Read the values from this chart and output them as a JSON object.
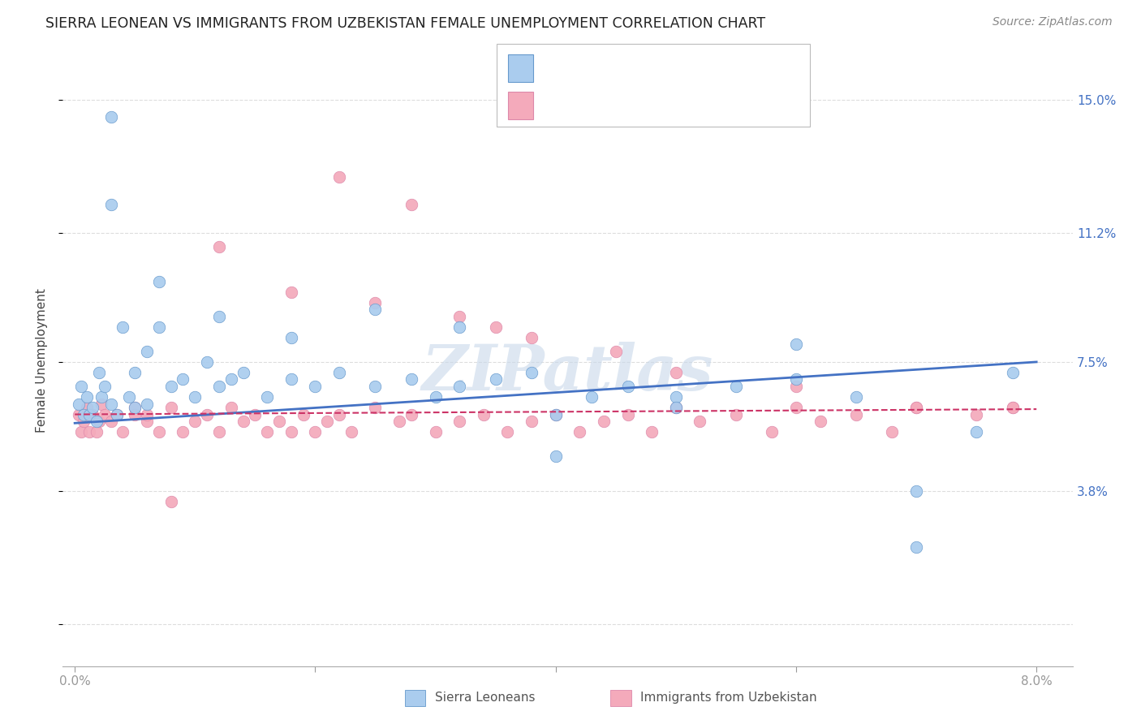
{
  "title": "SIERRA LEONEAN VS IMMIGRANTS FROM UZBEKISTAN FEMALE UNEMPLOYMENT CORRELATION CHART",
  "source": "Source: ZipAtlas.com",
  "ylabel": "Female Unemployment",
  "ytick_vals": [
    0.0,
    0.038,
    0.075,
    0.112,
    0.15
  ],
  "ytick_labels": [
    "",
    "3.8%",
    "7.5%",
    "11.2%",
    "15.0%"
  ],
  "xtick_vals": [
    0.0,
    0.02,
    0.04,
    0.06,
    0.08
  ],
  "xtick_labels": [
    "0.0%",
    "",
    "",
    "",
    "8.0%"
  ],
  "xlim": [
    -0.001,
    0.083
  ],
  "ylim": [
    -0.012,
    0.163
  ],
  "blue_color": "#AACCEE",
  "blue_edge": "#6699CC",
  "pink_color": "#F4AABB",
  "pink_edge": "#DD88AA",
  "trend_blue_color": "#4472C4",
  "trend_pink_color": "#CC3366",
  "grid_color": "#DDDDDD",
  "watermark_color": "#C8D8EA",
  "blue_label": "Sierra Leoneans",
  "pink_label": "Immigrants from Uzbekistan",
  "blue_x": [
    0.0003,
    0.0005,
    0.0007,
    0.001,
    0.0012,
    0.0015,
    0.0018,
    0.002,
    0.0022,
    0.0025,
    0.003,
    0.003,
    0.0035,
    0.004,
    0.0045,
    0.005,
    0.005,
    0.006,
    0.006,
    0.007,
    0.008,
    0.009,
    0.01,
    0.011,
    0.012,
    0.013,
    0.014,
    0.016,
    0.018,
    0.02,
    0.022,
    0.025,
    0.028,
    0.03,
    0.032,
    0.035,
    0.038,
    0.04,
    0.043,
    0.046,
    0.05,
    0.055,
    0.06,
    0.065,
    0.07,
    0.075,
    0.078,
    0.003,
    0.007,
    0.012,
    0.018,
    0.025,
    0.032,
    0.04,
    0.05,
    0.06,
    0.07
  ],
  "blue_y": [
    0.063,
    0.068,
    0.06,
    0.065,
    0.06,
    0.062,
    0.058,
    0.072,
    0.065,
    0.068,
    0.063,
    0.145,
    0.06,
    0.085,
    0.065,
    0.062,
    0.072,
    0.063,
    0.078,
    0.085,
    0.068,
    0.07,
    0.065,
    0.075,
    0.068,
    0.07,
    0.072,
    0.065,
    0.07,
    0.068,
    0.072,
    0.068,
    0.07,
    0.065,
    0.068,
    0.07,
    0.072,
    0.06,
    0.065,
    0.068,
    0.065,
    0.068,
    0.07,
    0.065,
    0.038,
    0.055,
    0.072,
    0.12,
    0.098,
    0.088,
    0.082,
    0.09,
    0.085,
    0.048,
    0.062,
    0.08,
    0.022
  ],
  "pink_x": [
    0.0003,
    0.0005,
    0.0007,
    0.001,
    0.0012,
    0.0015,
    0.0018,
    0.002,
    0.0022,
    0.0025,
    0.003,
    0.0035,
    0.004,
    0.005,
    0.006,
    0.006,
    0.007,
    0.008,
    0.009,
    0.01,
    0.011,
    0.012,
    0.013,
    0.014,
    0.015,
    0.016,
    0.017,
    0.018,
    0.019,
    0.02,
    0.021,
    0.022,
    0.023,
    0.025,
    0.027,
    0.028,
    0.03,
    0.032,
    0.034,
    0.036,
    0.038,
    0.04,
    0.042,
    0.044,
    0.046,
    0.048,
    0.05,
    0.052,
    0.055,
    0.058,
    0.06,
    0.062,
    0.065,
    0.068,
    0.07,
    0.075,
    0.078,
    0.005,
    0.008,
    0.012,
    0.018,
    0.025,
    0.032,
    0.038,
    0.045,
    0.05,
    0.06,
    0.07,
    0.078,
    0.022,
    0.028,
    0.035
  ],
  "pink_y": [
    0.06,
    0.055,
    0.058,
    0.062,
    0.055,
    0.06,
    0.055,
    0.058,
    0.063,
    0.06,
    0.058,
    0.06,
    0.055,
    0.062,
    0.058,
    0.06,
    0.055,
    0.062,
    0.055,
    0.058,
    0.06,
    0.055,
    0.062,
    0.058,
    0.06,
    0.055,
    0.058,
    0.055,
    0.06,
    0.055,
    0.058,
    0.06,
    0.055,
    0.062,
    0.058,
    0.06,
    0.055,
    0.058,
    0.06,
    0.055,
    0.058,
    0.06,
    0.055,
    0.058,
    0.06,
    0.055,
    0.062,
    0.058,
    0.06,
    0.055,
    0.062,
    0.058,
    0.06,
    0.055,
    0.062,
    0.06,
    0.062,
    0.06,
    0.035,
    0.108,
    0.095,
    0.092,
    0.088,
    0.082,
    0.078,
    0.072,
    0.068,
    0.062,
    0.062,
    0.128,
    0.12,
    0.085
  ],
  "blue_trend": [
    0.0,
    0.0575,
    0.08,
    0.075
  ],
  "pink_trend": [
    0.0,
    0.06,
    0.08,
    0.0615
  ]
}
